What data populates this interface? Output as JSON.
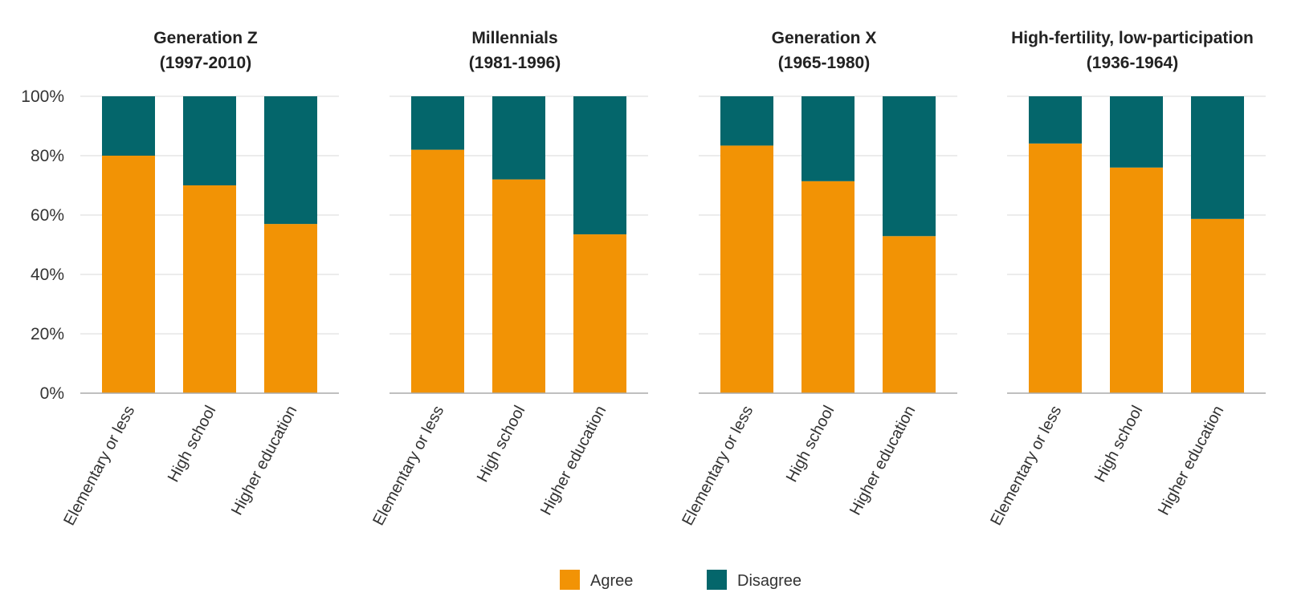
{
  "chart_data": [
    {
      "type": "bar",
      "stacked": true,
      "title": [
        "Generation Z",
        "(1997-2010)"
      ],
      "categories": [
        "Elementary or less",
        "High school",
        "Higher education"
      ],
      "series": [
        {
          "name": "Agree",
          "values": [
            80,
            70,
            57
          ]
        },
        {
          "name": "Disagree",
          "values": [
            20,
            30,
            43
          ]
        }
      ],
      "ylim": [
        0,
        100
      ]
    },
    {
      "type": "bar",
      "stacked": true,
      "title": [
        "Millennials",
        "(1981-1996)"
      ],
      "categories": [
        "Elementary or less",
        "High school",
        "Higher education"
      ],
      "series": [
        {
          "name": "Agree",
          "values": [
            82,
            72,
            53.5
          ]
        },
        {
          "name": "Disagree",
          "values": [
            18,
            28,
            46.5
          ]
        }
      ],
      "ylim": [
        0,
        100
      ]
    },
    {
      "type": "bar",
      "stacked": true,
      "title": [
        "Generation X",
        "(1965-1980)"
      ],
      "categories": [
        "Elementary or less",
        "High school",
        "Higher education"
      ],
      "series": [
        {
          "name": "Agree",
          "values": [
            83.4,
            71.4,
            52.9
          ]
        },
        {
          "name": "Disagree",
          "values": [
            16.6,
            28.6,
            47.1
          ]
        }
      ],
      "ylim": [
        0,
        100
      ]
    },
    {
      "type": "bar",
      "stacked": true,
      "title": [
        "High-fertility, low-participation",
        "(1936-1964)"
      ],
      "categories": [
        "Elementary or less",
        "High school",
        "Higher education"
      ],
      "series": [
        {
          "name": "Agree",
          "values": [
            84.1,
            76,
            58.7
          ]
        },
        {
          "name": "Disagree",
          "values": [
            15.9,
            24,
            41.3
          ]
        }
      ],
      "ylim": [
        0,
        100
      ]
    }
  ],
  "y_ticks": [
    "0%",
    "20%",
    "40%",
    "60%",
    "80%",
    "100%"
  ],
  "grid": true,
  "legend": {
    "placement": "bottom",
    "items": [
      {
        "label": "Agree",
        "color": "#f29305"
      },
      {
        "label": "Disagree",
        "color": "#04666b"
      }
    ]
  },
  "colors": {
    "agree": "#f29305",
    "disagree": "#04666b",
    "grid": "#e6e6e6",
    "axis": "#aaaaaa"
  }
}
